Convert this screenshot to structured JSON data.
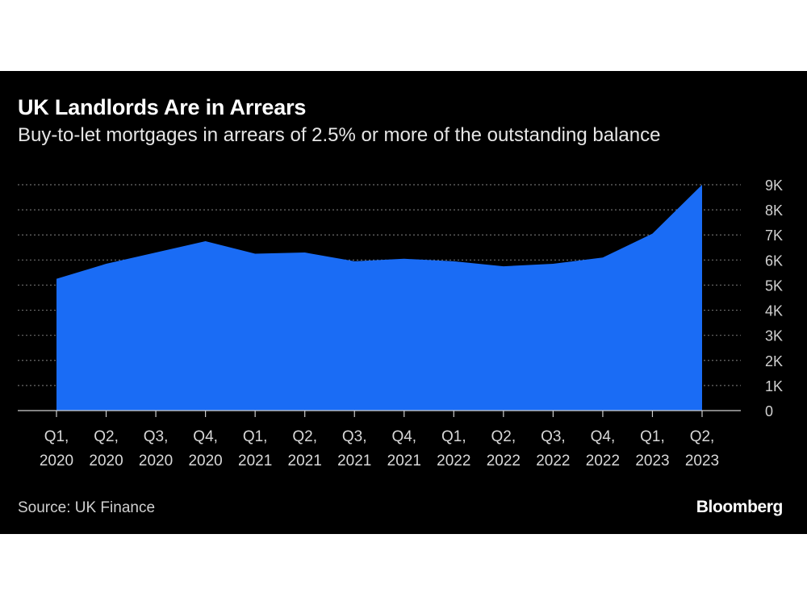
{
  "colors": {
    "background": "#000000",
    "area": "#1a6cf5",
    "grid": "#6b6b6b",
    "text": "#ffffff",
    "muted": "#d0d0d0"
  },
  "chart_data": {
    "type": "area",
    "title": "UK Landlords Are in Arrears",
    "subtitle": "Buy-to-let mortgages in arrears of 2.5% or more of the outstanding balance",
    "categories": [
      [
        "Q1,",
        "2020"
      ],
      [
        "Q2,",
        "2020"
      ],
      [
        "Q3,",
        "2020"
      ],
      [
        "Q4,",
        "2020"
      ],
      [
        "Q1,",
        "2021"
      ],
      [
        "Q2,",
        "2021"
      ],
      [
        "Q3,",
        "2021"
      ],
      [
        "Q4,",
        "2021"
      ],
      [
        "Q1,",
        "2022"
      ],
      [
        "Q2,",
        "2022"
      ],
      [
        "Q3,",
        "2022"
      ],
      [
        "Q4,",
        "2022"
      ],
      [
        "Q1,",
        "2023"
      ],
      [
        "Q2,",
        "2023"
      ]
    ],
    "series": [
      {
        "name": "Buy-to-let mortgages in arrears",
        "values": [
          5250,
          5850,
          6300,
          6750,
          6250,
          6300,
          5950,
          6050,
          5950,
          5750,
          5850,
          6100,
          7050,
          9000
        ]
      }
    ],
    "ylim": [
      0,
      9000
    ],
    "yticks": [
      0,
      1000,
      2000,
      3000,
      4000,
      5000,
      6000,
      7000,
      8000,
      9000
    ],
    "ytick_labels": [
      "0",
      "1K",
      "2K",
      "3K",
      "4K",
      "5K",
      "6K",
      "7K",
      "8K",
      "9K"
    ],
    "y_axis_position": "right",
    "grid": true,
    "legend": "none"
  },
  "footer": {
    "source": "Source: UK Finance",
    "brand": "Bloomberg"
  }
}
